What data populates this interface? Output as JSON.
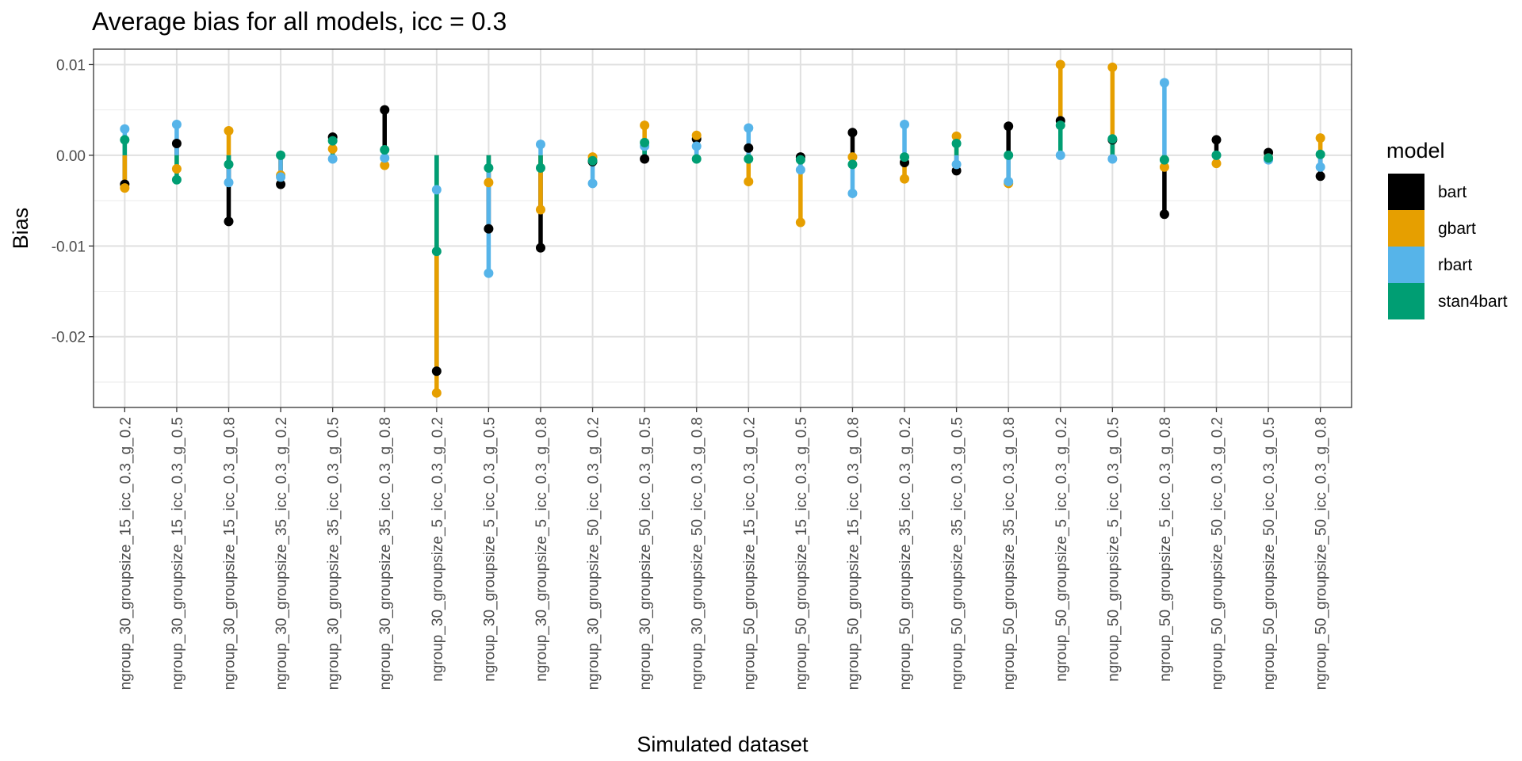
{
  "chart_data": {
    "type": "scatter",
    "title": "Average bias for all models, icc = 0.3",
    "xlabel": "Simulated dataset",
    "ylabel": "Bias",
    "ylim": [
      -0.0278,
      0.0117
    ],
    "yticks": [
      0.01,
      0.0,
      -0.01,
      -0.02
    ],
    "ytick_labels": [
      "0.01",
      "0.00",
      "-0.01",
      "-0.02"
    ],
    "grid": true,
    "legend": {
      "title": "model",
      "position": "right"
    },
    "segments_from_zero": true,
    "categories": [
      "ngroup_30_groupsize_15_icc_0.3_g_0.2",
      "ngroup_30_groupsize_15_icc_0.3_g_0.5",
      "ngroup_30_groupsize_15_icc_0.3_g_0.8",
      "ngroup_30_groupsize_35_icc_0.3_g_0.2",
      "ngroup_30_groupsize_35_icc_0.3_g_0.5",
      "ngroup_30_groupsize_35_icc_0.3_g_0.8",
      "ngroup_30_groupsize_5_icc_0.3_g_0.2",
      "ngroup_30_groupsize_5_icc_0.3_g_0.5",
      "ngroup_30_groupsize_5_icc_0.3_g_0.8",
      "ngroup_30_groupsize_50_icc_0.3_g_0.2",
      "ngroup_30_groupsize_50_icc_0.3_g_0.5",
      "ngroup_30_groupsize_50_icc_0.3_g_0.8",
      "ngroup_50_groupsize_15_icc_0.3_g_0.2",
      "ngroup_50_groupsize_15_icc_0.3_g_0.5",
      "ngroup_50_groupsize_15_icc_0.3_g_0.8",
      "ngroup_50_groupsize_35_icc_0.3_g_0.2",
      "ngroup_50_groupsize_35_icc_0.3_g_0.5",
      "ngroup_50_groupsize_35_icc_0.3_g_0.8",
      "ngroup_50_groupsize_5_icc_0.3_g_0.2",
      "ngroup_50_groupsize_5_icc_0.3_g_0.5",
      "ngroup_50_groupsize_5_icc_0.3_g_0.8",
      "ngroup_50_groupsize_50_icc_0.3_g_0.2",
      "ngroup_50_groupsize_50_icc_0.3_g_0.5",
      "ngroup_50_groupsize_50_icc_0.3_g_0.8"
    ],
    "series": [
      {
        "name": "bart",
        "color": "#000000",
        "values": [
          -0.0032,
          0.0013,
          -0.0073,
          -0.0032,
          0.002,
          0.005,
          -0.0238,
          -0.0081,
          -0.0102,
          -0.0007,
          -0.0004,
          0.0018,
          0.0008,
          -0.0002,
          0.0025,
          -0.0008,
          -0.0017,
          0.0032,
          0.0038,
          0.0017,
          -0.0065,
          0.0017,
          0.0003,
          -0.0023
        ]
      },
      {
        "name": "gbart",
        "color": "#E69F00",
        "values": [
          -0.0036,
          -0.0015,
          0.0027,
          -0.0022,
          0.0007,
          -0.0011,
          -0.0262,
          -0.003,
          -0.006,
          -0.0002,
          0.0033,
          0.0022,
          -0.0029,
          -0.0074,
          -0.0002,
          -0.0026,
          0.0021,
          -0.0031,
          0.01,
          0.0097,
          -0.0013,
          -0.0009,
          -0.0003,
          0.0019
        ]
      },
      {
        "name": "rbart",
        "color": "#56B4E9",
        "values": [
          0.0029,
          0.0034,
          -0.003,
          -0.0024,
          -0.0004,
          -0.0003,
          -0.0038,
          -0.013,
          0.0012,
          -0.0031,
          0.001,
          0.001,
          0.003,
          -0.0016,
          -0.0042,
          0.0034,
          -0.001,
          -0.0029,
          0.0,
          -0.0004,
          0.008,
          0.0,
          -0.0005,
          -0.0013
        ]
      },
      {
        "name": "stan4bart",
        "color": "#009E73",
        "values": [
          0.0017,
          -0.0027,
          -0.001,
          0.0,
          0.0016,
          0.0006,
          -0.0106,
          -0.0014,
          -0.0014,
          -0.0006,
          0.0014,
          -0.0004,
          -0.0004,
          -0.0005,
          -0.001,
          -0.0002,
          0.0013,
          0.0,
          0.0033,
          0.0018,
          -0.0005,
          0.0,
          -0.0003,
          0.0001
        ]
      }
    ]
  }
}
